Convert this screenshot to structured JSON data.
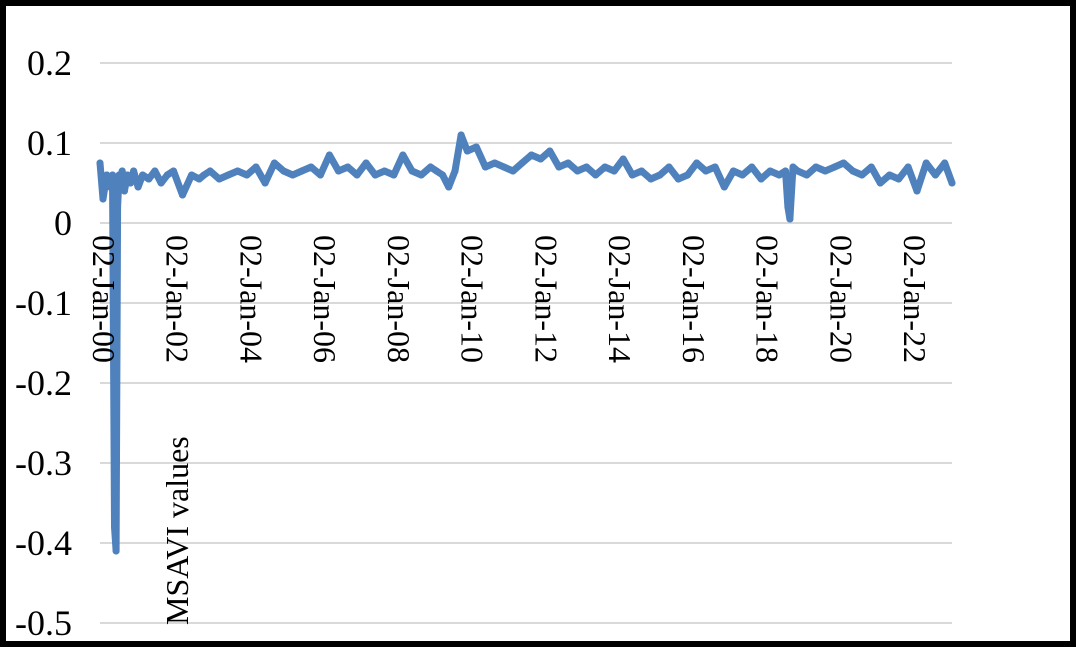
{
  "chart_data": {
    "type": "line",
    "title": "",
    "xlabel": "",
    "ylabel": "MSAVI values",
    "grid": true,
    "ylim": [
      -0.5,
      0.2
    ],
    "y_ticks": [
      "0.2",
      "0.1",
      "0",
      "-0.1",
      "-0.2",
      "-0.3",
      "-0.4",
      "-0.5"
    ],
    "x_ticks": [
      "02-Jan-00",
      "02-Jan-02",
      "02-Jan-04",
      "02-Jan-06",
      "02-Jan-08",
      "02-Jan-10",
      "02-Jan-12",
      "02-Jan-14",
      "02-Jan-16",
      "02-Jan-18",
      "02-Jan-20",
      "02-Jan-22"
    ],
    "xlim": [
      "2000-01-02",
      "2023-03-15"
    ],
    "line_color": "#4f81bd",
    "series": [
      {
        "x": [
          "2000-01-02",
          "2000-02-01",
          "2000-03-10",
          "2000-04-10",
          "2000-05-05",
          "2000-05-25",
          "2000-06-10",
          "2000-06-25",
          "2000-07-10",
          "2000-07-25",
          "2000-08-10",
          "2000-09-01",
          "2000-10-01",
          "2000-11-01",
          "2000-12-01",
          "2001-01-15",
          "2001-03-01",
          "2001-05-01",
          "2001-07-01",
          "2001-09-01",
          "2001-11-01",
          "2002-01-02",
          "2002-04-01",
          "2002-07-01",
          "2002-09-15",
          "2002-11-01",
          "2003-01-01",
          "2003-04-01",
          "2003-07-01",
          "2003-10-01",
          "2004-01-02",
          "2004-04-01",
          "2004-07-01",
          "2004-10-01",
          "2005-01-01",
          "2005-04-01",
          "2005-07-01",
          "2005-10-01",
          "2006-01-02",
          "2006-04-01",
          "2006-07-01",
          "2006-10-01",
          "2007-01-01",
          "2007-04-01",
          "2007-07-01",
          "2007-10-01",
          "2008-01-02",
          "2008-04-01",
          "2008-07-01",
          "2008-10-01",
          "2009-01-01",
          "2009-03-01",
          "2009-05-01",
          "2009-07-01",
          "2009-09-01",
          "2009-11-01",
          "2010-01-02",
          "2010-04-01",
          "2010-07-01",
          "2010-10-01",
          "2011-01-01",
          "2011-04-01",
          "2011-07-01",
          "2011-10-01",
          "2012-01-02",
          "2012-04-01",
          "2012-07-01",
          "2012-10-01",
          "2013-01-01",
          "2013-04-01",
          "2013-07-01",
          "2013-10-01",
          "2014-01-02",
          "2014-04-01",
          "2014-07-01",
          "2014-10-01",
          "2015-01-01",
          "2015-04-01",
          "2015-07-01",
          "2015-10-01",
          "2016-01-02",
          "2016-04-01",
          "2016-07-01",
          "2016-10-01",
          "2017-01-01",
          "2017-04-01",
          "2017-07-01",
          "2017-10-01",
          "2018-01-02",
          "2018-04-01",
          "2018-07-01",
          "2018-09-01",
          "2018-09-25",
          "2018-10-15",
          "2018-11-15",
          "2019-01-01",
          "2019-04-01",
          "2019-07-01",
          "2019-10-01",
          "2020-01-02",
          "2020-04-01",
          "2020-07-01",
          "2020-10-01",
          "2021-01-01",
          "2021-04-01",
          "2021-07-01",
          "2021-10-01",
          "2022-01-02",
          "2022-04-01",
          "2022-07-01",
          "2022-10-01",
          "2023-01-01",
          "2023-03-15"
        ],
        "values": [
          0.075,
          0.03,
          0.06,
          0.045,
          0.06,
          -0.38,
          -0.41,
          0.02,
          0.06,
          0.05,
          0.065,
          0.04,
          0.06,
          0.05,
          0.065,
          0.045,
          0.06,
          0.055,
          0.065,
          0.05,
          0.06,
          0.065,
          0.035,
          0.06,
          0.055,
          0.06,
          0.065,
          0.055,
          0.06,
          0.065,
          0.06,
          0.07,
          0.05,
          0.075,
          0.065,
          0.06,
          0.065,
          0.07,
          0.06,
          0.085,
          0.065,
          0.07,
          0.06,
          0.075,
          0.06,
          0.065,
          0.06,
          0.085,
          0.065,
          0.06,
          0.07,
          0.065,
          0.06,
          0.045,
          0.065,
          0.11,
          0.09,
          0.095,
          0.07,
          0.075,
          0.07,
          0.065,
          0.075,
          0.085,
          0.08,
          0.09,
          0.07,
          0.075,
          0.065,
          0.07,
          0.06,
          0.07,
          0.065,
          0.08,
          0.06,
          0.065,
          0.055,
          0.06,
          0.07,
          0.055,
          0.06,
          0.075,
          0.065,
          0.07,
          0.045,
          0.065,
          0.06,
          0.07,
          0.055,
          0.065,
          0.06,
          0.065,
          0.02,
          0.005,
          0.07,
          0.065,
          0.06,
          0.07,
          0.065,
          0.07,
          0.075,
          0.065,
          0.06,
          0.07,
          0.05,
          0.06,
          0.055,
          0.07,
          0.04,
          0.075,
          0.06,
          0.075,
          0.05
        ]
      }
    ]
  }
}
